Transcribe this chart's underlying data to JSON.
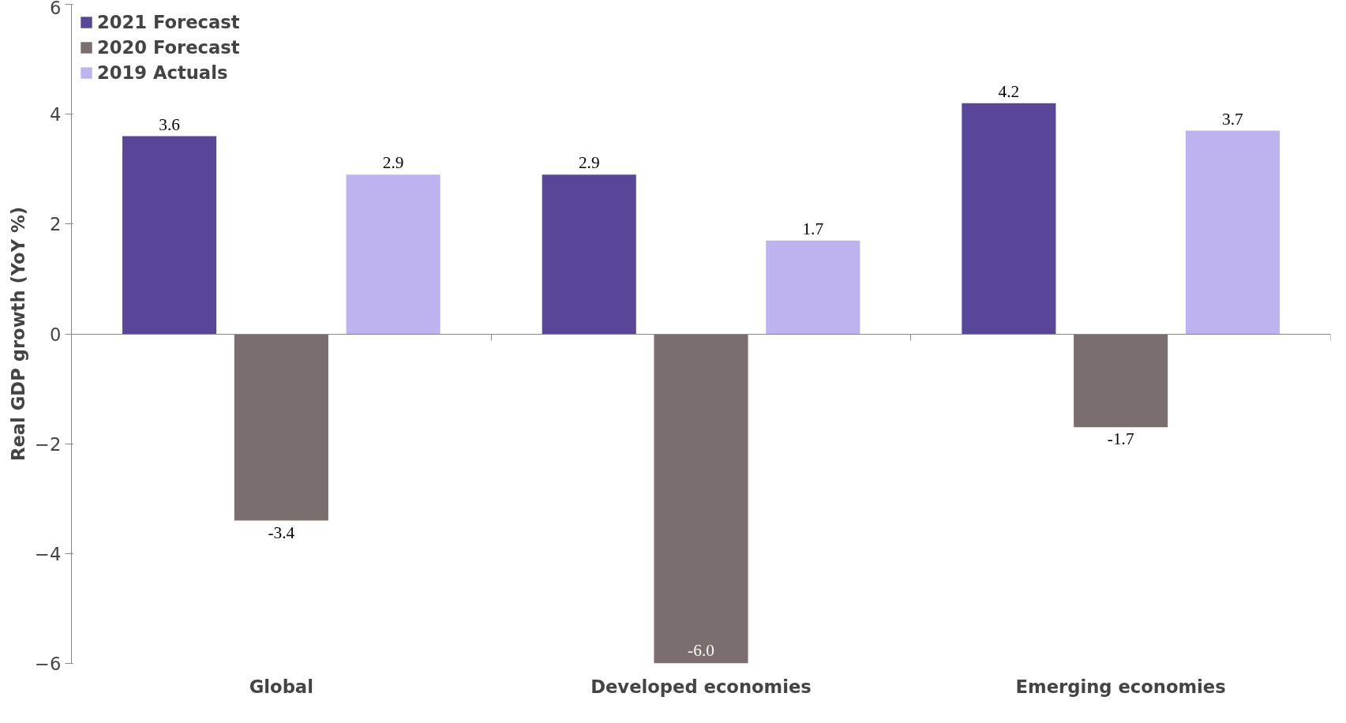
{
  "chart_data": {
    "type": "bar",
    "ylabel": "Real GDP growth (YoY %)",
    "categories": [
      "Global",
      "Developed economies",
      "Emerging economies"
    ],
    "series": [
      {
        "name": "2021 Forecast",
        "color": "#5a4698",
        "values": [
          3.6,
          2.9,
          4.2
        ],
        "value_labels": [
          "3.6",
          "2.9",
          "4.2"
        ]
      },
      {
        "name": "2020 Forecast",
        "color": "#7a6e6e",
        "values": [
          -3.4,
          -6.0,
          -1.7
        ],
        "value_labels": [
          "-3.4",
          "-6.0",
          "-1.7"
        ]
      },
      {
        "name": "2019 Actuals",
        "color": "#bfb3ef",
        "values": [
          2.9,
          1.7,
          3.7
        ],
        "value_labels": [
          "2.9",
          "1.7",
          "3.7"
        ]
      }
    ],
    "ylim": [
      -6,
      6
    ],
    "yticks": [
      -6,
      -4,
      -2,
      0,
      2,
      4,
      6
    ],
    "legend": "top left"
  }
}
